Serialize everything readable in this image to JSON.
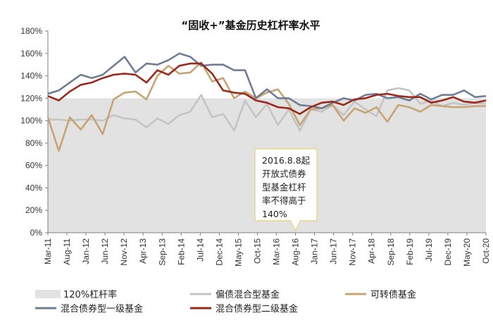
{
  "chart_data": {
    "type": "line",
    "title": "“固收+”基金历史杠杆率水平",
    "xlabel": "",
    "ylabel": "",
    "ylim": [
      0,
      180
    ],
    "yticks": [
      "0%",
      "20%",
      "40%",
      "60%",
      "80%",
      "100%",
      "120%",
      "140%",
      "160%",
      "180%"
    ],
    "x_tick_labels": [
      "Mar-11",
      "Aug-11",
      "Jan-12",
      "Jun-12",
      "Nov-12",
      "Apr-13",
      "Sep-13",
      "Feb-14",
      "Jul-14",
      "Dec-14",
      "May-15",
      "Oct-15",
      "Mar-16",
      "Aug-16",
      "Jan-17",
      "Jun-17",
      "Nov-17",
      "Apr-18",
      "Sep-18",
      "Feb-19",
      "Jul-19",
      "Dec-19",
      "May-20",
      "Oct-20"
    ],
    "reference_band": {
      "name": "120%杠杆率",
      "value": 120,
      "color": "#e2e2e2"
    },
    "series": [
      {
        "name": "偏债混合型基金",
        "color": "#c4c4c4",
        "values": [
          101,
          101,
          100,
          101,
          101,
          100,
          105,
          102,
          101,
          94,
          102,
          97,
          105,
          108,
          123,
          103,
          106,
          91,
          118,
          103,
          115,
          96,
          110,
          91,
          110,
          108,
          114,
          105,
          117,
          110,
          104,
          127,
          129,
          127,
          115,
          118,
          113,
          116,
          114,
          116,
          115
        ]
      },
      {
        "name": "可转债基金",
        "color": "#c8a475",
        "values": [
          103,
          73,
          103,
          92,
          105,
          88,
          119,
          125,
          126,
          119,
          140,
          149,
          142,
          143,
          152,
          135,
          138,
          120,
          126,
          120,
          125,
          128,
          115,
          96,
          110,
          111,
          114,
          100,
          111,
          107,
          112,
          99,
          114,
          112,
          108,
          114,
          113,
          112,
          112,
          113,
          113
        ]
      },
      {
        "name": "混合债券型一级基金",
        "color": "#6f7d96",
        "values": [
          124,
          127,
          134,
          141,
          138,
          141,
          149,
          157,
          143,
          151,
          150,
          154,
          160,
          157,
          149,
          150,
          150,
          145,
          145,
          120,
          128,
          120,
          120,
          114,
          113,
          111,
          116,
          120,
          118,
          123,
          124,
          120,
          121,
          118,
          124,
          119,
          123,
          123,
          127,
          121,
          122
        ]
      },
      {
        "name": "混合债券型二级基金",
        "color": "#9b2a1c",
        "values": [
          122,
          118,
          126,
          132,
          134,
          138,
          141,
          142,
          141,
          134,
          145,
          141,
          149,
          151,
          151,
          142,
          127,
          125,
          124,
          118,
          116,
          112,
          111,
          106,
          112,
          116,
          117,
          114,
          119,
          120,
          123,
          124,
          122,
          121,
          121,
          116,
          118,
          121,
          117,
          116,
          118
        ]
      }
    ],
    "annotation": {
      "lines": [
        "2016.8.8起",
        "开放式债券",
        "型基金杠杆",
        "率不得高于",
        "140%"
      ],
      "x_label": "Aug-16"
    },
    "legend_position": "bottom"
  }
}
